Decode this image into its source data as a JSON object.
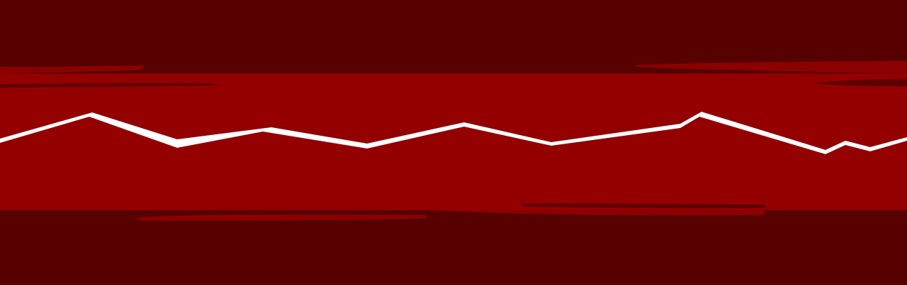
{
  "colors": {
    "background_dark": "#560000",
    "band_red": "#940000",
    "brush_stroke": "#8b0000",
    "brush_shadow": "#5e0000",
    "zigzag_line": "#ffffff"
  },
  "graphic": {
    "description_icon": "zigzag-pulse-line",
    "band_icon": "red-band",
    "stroke_icon": "brush-stroke"
  }
}
